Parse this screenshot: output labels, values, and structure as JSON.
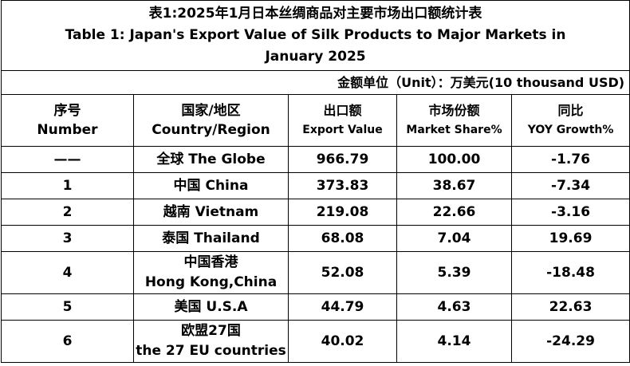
{
  "title_zh": "表1:2025年1月日本丝绸商品对主要市场出口额统计表",
  "title_en": "Table 1: Japan's Export Value of Silk Products to Major Markets in January 2025",
  "unit": "金额单位（Unit）：万美元(10 thousand USD)",
  "header": [
    [
      "序号",
      "Number"
    ],
    [
      "国家/地区",
      "Country/Region"
    ],
    [
      "出口额",
      "Export Value"
    ],
    [
      "市场份额",
      "Market Share%"
    ],
    [
      "同比",
      "YOY Growth%"
    ]
  ],
  "rows": [
    {
      "number": "——",
      "country": [
        "全球  The Globe"
      ],
      "export_value": "966.79",
      "market_share": "100.00",
      "yoy_growth": "-1.76"
    },
    {
      "number": "1",
      "country": [
        "中国 China"
      ],
      "export_value": "373.83",
      "market_share": "38.67",
      "yoy_growth": "-7.34"
    },
    {
      "number": "2",
      "country": [
        "越南 Vietnam"
      ],
      "export_value": "219.08",
      "market_share": "22.66",
      "yoy_growth": "-3.16"
    },
    {
      "number": "3",
      "country": [
        "泰国 Thailand"
      ],
      "export_value": "68.08",
      "market_share": "7.04",
      "yoy_growth": "19.69"
    },
    {
      "number": "4",
      "country": [
        "中国香港",
        "Hong Kong,China"
      ],
      "export_value": "52.08",
      "market_share": "5.39",
      "yoy_growth": "-18.48"
    },
    {
      "number": "5",
      "country": [
        "美国 U.S.A"
      ],
      "export_value": "44.79",
      "market_share": "4.63",
      "yoy_growth": "22.63"
    },
    {
      "number": "6",
      "country": [
        "欧盟27国",
        "the 27 EU countries"
      ],
      "export_value": "40.02",
      "market_share": "4.14",
      "yoy_growth": "-24.29"
    }
  ]
}
